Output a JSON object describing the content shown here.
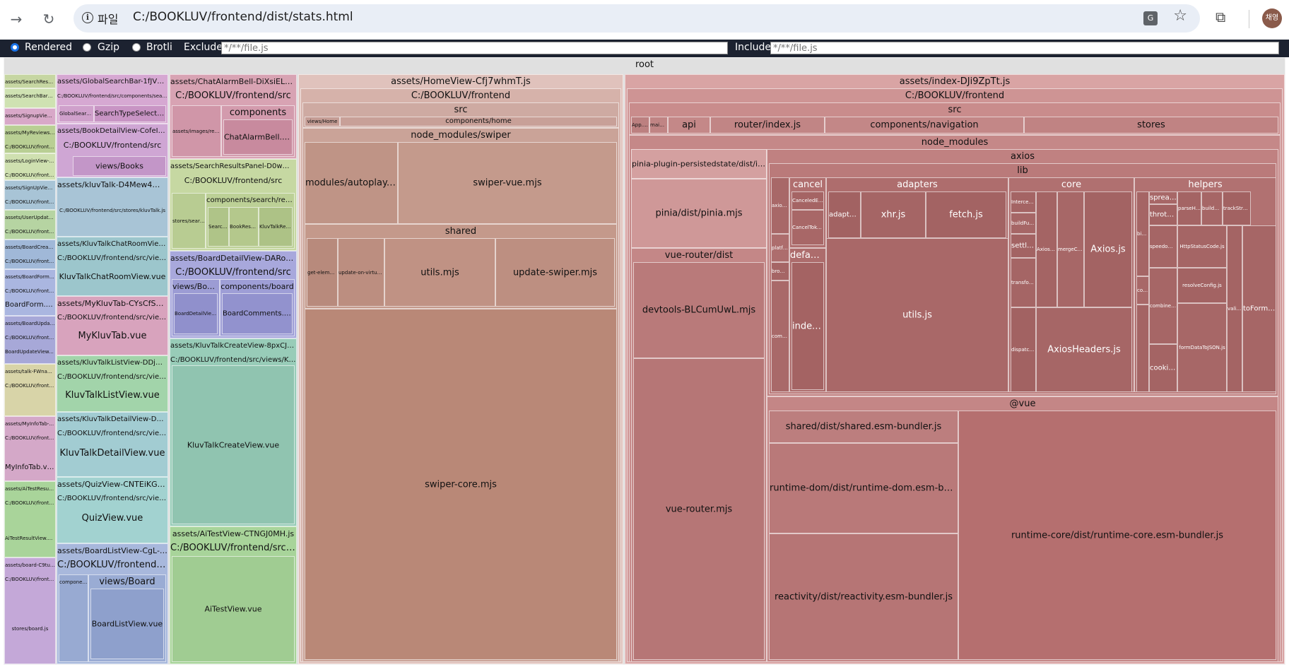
{
  "browser": {
    "scheme_label": "파일",
    "url": "C:/BOOKLUV/frontend/dist/stats.html",
    "profile_initials": "채영"
  },
  "toolbar": {
    "rendered_label": "Rendered",
    "gzip_label": "Gzip",
    "brotli_label": "Brotli",
    "selected_mode": "Rendered",
    "exclude_label": "Exclude",
    "exclude_placeholder": "*/**/file.js",
    "include_label": "Include",
    "include_placeholder": "*/**/file.js"
  },
  "treemap": {
    "root": "root",
    "col1": {
      "n1": "assets/SearchResultsView-D2bJsP5z.js",
      "n2": "assets/SearchBarResultView-Cy1B9kSs.js",
      "n3": "assets/SignupView-DtRjH8Ks.js",
      "n4": "assets/MyReviewsView-Dwr3bXgq.js",
      "n4b": "C:/BOOKLUV/frontend/src",
      "n5": "assets/LoginView-B-mhKPqs.js",
      "n5b": "C:/BOOKLUV/frontend/src/views/auth",
      "n6": "assets/SignUpView-9FrbbMjs.js",
      "n6b": "C:/BOOKLUV/frontend/src/views/auth",
      "n7": "assets/UserUpdateView-BGkJNH7x.js",
      "n7b": "C:/BOOKLUV/frontend/src/views/auth",
      "n8": "assets/BoardCreateView-Bsd8bh5v.js",
      "n8b": "C:/BOOKLUV/frontend/src/views/Board",
      "n9": "assets/BoardForm-DLuD3g2b.js",
      "n9b": "C:/BOOKLUV/frontend/src/components/board",
      "n9c": "BoardForm.vue",
      "n10": "assets/BoardUpdateView-Dm1_u6Gy.js",
      "n10b": "C:/BOOKLUV/frontend/src/views/Board",
      "n10c": "BoardUpdateView.vue",
      "n11": "assets/talk-FWnadbm3.js",
      "n11b": "C:/BOOKLUV/frontend/src/stores/kluvTalk.js",
      "n12": "assets/MyInfoTab-Bb0yCo1p.js",
      "n12b": "C:/BOOKLUV/frontend/src/views/MyPage",
      "n12c": "MyInfoTab.vue",
      "n13": "assets/AiTestResultView-B4bT5d7g.js",
      "n13b": "C:/BOOKLUV/frontend/src/views/AI",
      "n13c": "AiTestResultView.vue",
      "n14": "assets/board-C9tuu8Wq.js",
      "n14b": "C:/BOOKLUV/frontend/src",
      "n14c": "stores/board.js"
    },
    "col2": {
      "global": "assets/GlobalSearchBar-1fJVKmIS.js",
      "global_path": "C:/BOOKLUV/frontend/src/components/search",
      "global_a": "GlobalSearchBar.vue",
      "global_b": "SearchTypeSelect.vue",
      "bookdetail": "assets/BookDetailView-CofeICCa.js",
      "bookdetail_path": "C:/BOOKLUV/frontend/src",
      "bookdetail_views": "views/Books",
      "kluvtalk": "assets/kluvTalk-D4Mew4Wc.js",
      "kluvtalk_path": "C:/BOOKLUV/frontend/src/stores/kluvTalk.js",
      "chatroom": "assets/KluvTalkChatRoomView-CE3UMIH.js",
      "chatroom_path": "C:/BOOKLUV/frontend/src/views/KluvTalk",
      "chatroom_vue": "KluvTalkChatRoomView.vue",
      "mykluv": "assets/MyKluvTab-CYsCfSxP.js",
      "mykluv_path": "C:/BOOKLUV/frontend/src/views/MyPage",
      "mykluv_vue": "MyKluvTab.vue",
      "talklist": "assets/KluvTalkListView-DDjQG-cO.js",
      "talklist_path": "C:/BOOKLUV/frontend/src/views/KluvTalk",
      "talklist_vue": "KluvTalkListView.vue",
      "talkdetail": "assets/KluvTalkDetailView-DEnWm4In.js",
      "talkdetail_path": "C:/BOOKLUV/frontend/src/views/KluvTalk",
      "talkdetail_vue": "KluvTalkDetailView.vue",
      "quiz": "assets/QuizView-CNTEiKGO.js",
      "quiz_path": "C:/BOOKLUV/frontend/src/views/KluvTalk",
      "quiz_vue": "QuizView.vue",
      "boardlist": "assets/BoardListView-CgL-DtSX.js",
      "boardlist_path": "C:/BOOKLUV/frontend/src",
      "boardlist_comp": "components/board",
      "boardlist_views": "views/Board",
      "boardlist_vue": "BoardListView.vue"
    },
    "col3": {
      "chatalarm": "assets/ChatAlarmBell-DiXsiELn.js",
      "chatalarm_path": "C:/BOOKLUV/frontend/src",
      "chatalarm_img": "assets/images/replay.png",
      "chatalarm_comp": "components",
      "chatalarm_vue": "ChatAlarmBell.vue",
      "searchres": "assets/SearchResultsPanel-D0wWwR2M.js",
      "searchres_path": "C:/BOOKLUV/frontend/src",
      "searchres_store": "stores/search.js",
      "searchres_comp": "components/search/results",
      "searchres_a": "SearchBookList.vue",
      "searchres_b": "BookResultItem.vue",
      "searchres_c": "KluvTalkResultItem.vue",
      "boarddetail": "assets/BoardDetailView-DARoUwLD.js",
      "boarddetail_path": "C:/BOOKLUV/frontend/src",
      "boarddetail_views": "views/Board",
      "boarddetail_comp": "components/board",
      "boarddetail_vue": "BoardDetailView.vue",
      "boarddetail_comments": "BoardComments.vue",
      "talkcreate": "assets/KluvTalkCreateView-8pxCJIVr.js",
      "talkcreate_path": "C:/BOOKLUV/frontend/src/views/KluvTalk",
      "talkcreate_vue": "KluvTalkCreateView.vue",
      "aitest": "assets/AiTestView-CTNGJ0MH.js",
      "aitest_path": "C:/BOOKLUV/frontend/src/views/AI",
      "aitest_vue": "AiTestView.vue"
    },
    "home": {
      "title": "assets/HomeView-Cfj7whmT.js",
      "path": "C:/BOOKLUV/frontend",
      "src": "src",
      "views_home": "views/Home",
      "components_home": "components/home",
      "swiper": "node_modules/swiper",
      "autoplay": "modules/autoplay.mjs",
      "swiper_vue": "swiper-vue.mjs",
      "shared": "shared",
      "shared_a": "get-element-params.mjs",
      "shared_b": "update-on-virtual-data.mjs",
      "utils": "utils.mjs",
      "update_swiper": "update-swiper.mjs",
      "swiper_core": "swiper-core.mjs"
    },
    "index": {
      "title": "assets/index-DJi9ZpTt.js",
      "path": "C:/BOOKLUV/frontend",
      "src": "src",
      "app_vue": "App.vue",
      "main_js": "main.js",
      "api": "api",
      "router": "router/index.js",
      "navigation": "components/navigation",
      "stores": "stores",
      "node_modules": "node_modules",
      "pinia_persist": "pinia-plugin-persistedstate/dist/index.js",
      "pinia": "pinia/dist/pinia.mjs",
      "vue_router_dist": "vue-router/dist",
      "devtools": "devtools-BLCumUwL.mjs",
      "vue_router": "vue-router.mjs",
      "axios": "axios",
      "lib": "lib",
      "axios_js": "axios.js",
      "platform": "platform",
      "browser": "browser",
      "common": "common",
      "cancel": "cancel",
      "canceled_error": "CanceledError.js",
      "cancel_token": "CancelToken.js",
      "defaults": "defaults",
      "defaults_index": "index.js",
      "adapters": "adapters",
      "adapters_js": "adapters.js",
      "xhr": "xhr.js",
      "fetch": "fetch.js",
      "utils": "utils.js",
      "core": "core",
      "core_a": "InterceptorManager.js",
      "core_b": "buildFullPath.js",
      "settle": "settle.js",
      "core_c": "transformData.js",
      "core_d": "dispatchRequest.js",
      "axios_error": "AxiosError.js",
      "merge_config": "mergeConfig.js",
      "axios_core": "Axios.js",
      "axios_headers": "AxiosHeaders.js",
      "helpers": "helpers",
      "spread": "spread.js",
      "throttle": "throttle.js",
      "h_a": "parseHeaders.js",
      "h_b": "combineURLs.js",
      "build_url": "buildURL.js",
      "track_stream": "trackStream.js",
      "speedometer": "speedometer.js",
      "http_status": "HttpStatusCode.js",
      "resolve_config": "resolveConfig.js",
      "validator": "validator.js",
      "to_form_data": "toFormData.js",
      "bind": "bind.js",
      "composite": "composeSignals.js",
      "cookies": "cookies.js",
      "form_to_json": "formDataToJSON.js",
      "vue": "@vue",
      "shared_bundler": "shared/dist/shared.esm-bundler.js",
      "runtime_dom": "runtime-dom/dist/runtime-dom.esm-bundler.js",
      "reactivity": "reactivity/dist/reactivity.esm-bundler.js",
      "runtime_core": "runtime-core/dist/runtime-core.esm-bundler.js"
    }
  },
  "colors": {
    "chrome_bar": "#e9eef6",
    "toolbar_bg": "#1c2230",
    "root_bg": "#e0e0e0",
    "index_red": "#b56f6f",
    "home_brown": "#b98877"
  }
}
